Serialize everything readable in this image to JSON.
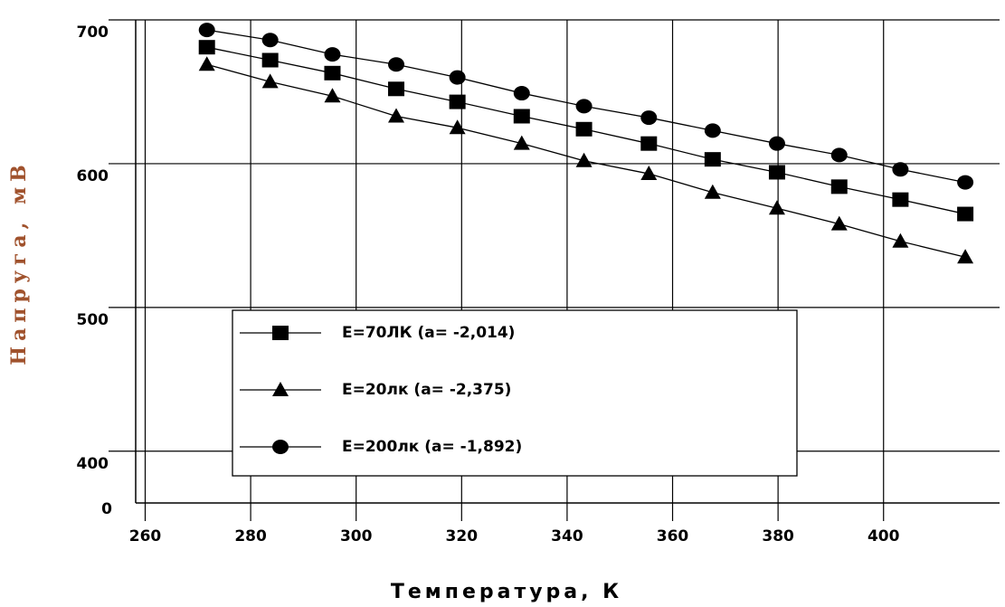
{
  "chart_data": {
    "type": "line",
    "x_label": "Температура, К",
    "y_label": "Напруга, мВ",
    "y_origin_label": "0",
    "x": [
      271.7,
      283.7,
      295.5,
      307.6,
      319.2,
      331.4,
      343.2,
      355.5,
      367.6,
      379.8,
      391.6,
      403.2,
      415.5
    ],
    "series": [
      {
        "name": "E=70ЛК (a= -2,014)",
        "color": "#000000",
        "marker": "square",
        "values": [
          681,
          672,
          663,
          652,
          643,
          633,
          624,
          614,
          603,
          594,
          584,
          575,
          565
        ]
      },
      {
        "name": "E=20лк (a= -2,375)",
        "color": "#000000",
        "marker": "triangle",
        "values": [
          669,
          657,
          647,
          633,
          625,
          614,
          602,
          593,
          580,
          569,
          558,
          546,
          535
        ]
      },
      {
        "name": "E=200лк (a= -1,892)",
        "color": "#000000",
        "marker": "circle",
        "values": [
          693,
          686,
          676,
          669,
          660,
          649,
          640,
          632,
          623,
          614,
          606,
          596,
          587
        ]
      }
    ],
    "xlim": [
      258.2,
      422
    ],
    "xticks": [
      260,
      280,
      300,
      320,
      340,
      360,
      380,
      400
    ],
    "ylim": [
      364,
      700
    ],
    "yticks": [
      400,
      500,
      600,
      700
    ],
    "grid": true
  }
}
